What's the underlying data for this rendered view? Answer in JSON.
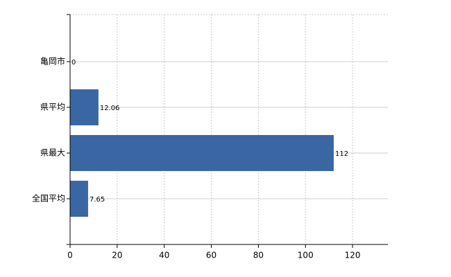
{
  "chart_data": {
    "type": "bar",
    "orientation": "horizontal",
    "categories": [
      "亀岡市",
      "県平均",
      "県最大",
      "全国平均"
    ],
    "values": [
      0,
      12.06,
      112,
      7.65
    ],
    "color": "#3a66a3",
    "xlim": [
      0,
      135
    ],
    "xticks": [
      0,
      20,
      40,
      60,
      80,
      100,
      120
    ],
    "grid": true
  }
}
